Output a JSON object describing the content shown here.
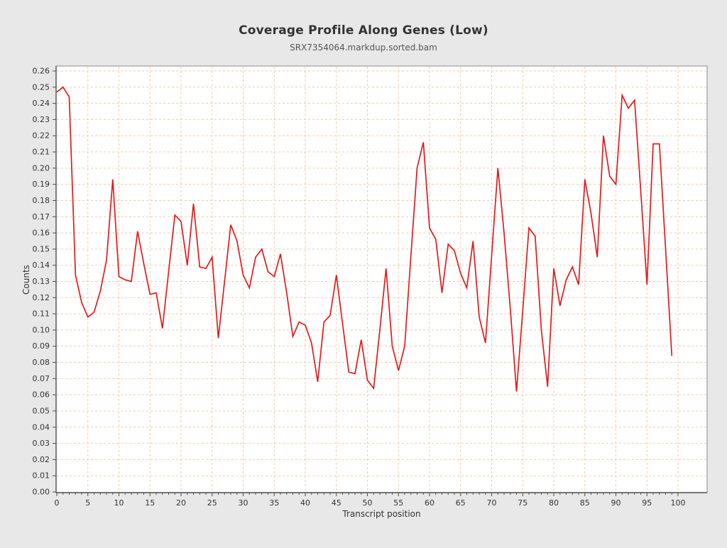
{
  "colors": {
    "background": "#e8e8e8",
    "plot_background": "#ffffff",
    "grid": "#f5c9a2",
    "series": "#e41a1c",
    "frame": "#8c8c8c",
    "axis": "#4d4d4d",
    "tick_label": "#333333",
    "title": "#333333",
    "subtitle": "#555555"
  },
  "chart_data": {
    "type": "line",
    "title": "Coverage Profile Along Genes (Low)",
    "subtitle": "SRX7354064.markdup.sorted.bam",
    "xlabel": "Transcript position",
    "ylabel": "Counts",
    "xlim": [
      0,
      100
    ],
    "ylim": [
      0,
      0.26
    ],
    "x_tick_major": 5,
    "x_tick_minor": 1,
    "y_tick_step": 0.01,
    "grid": true,
    "legend_position": "none",
    "series": [
      {
        "name": "SRX7354064.markdup.sorted.bam",
        "color": "#e41a1c",
        "x": [
          0,
          1,
          2,
          3,
          4,
          5,
          6,
          7,
          8,
          9,
          10,
          11,
          12,
          13,
          14,
          15,
          16,
          17,
          18,
          19,
          20,
          21,
          22,
          23,
          24,
          25,
          26,
          27,
          28,
          29,
          30,
          31,
          32,
          33,
          34,
          35,
          36,
          37,
          38,
          39,
          40,
          41,
          42,
          43,
          44,
          45,
          46,
          47,
          48,
          49,
          50,
          51,
          52,
          53,
          54,
          55,
          56,
          57,
          58,
          59,
          60,
          61,
          62,
          63,
          64,
          65,
          66,
          67,
          68,
          69,
          70,
          71,
          72,
          73,
          74,
          75,
          76,
          77,
          78,
          79,
          80,
          81,
          82,
          83,
          84,
          85,
          86,
          87,
          88,
          89,
          90,
          91,
          92,
          93,
          94,
          95,
          96,
          97,
          98,
          99
        ],
        "y": [
          0.247,
          0.25,
          0.244,
          0.134,
          0.117,
          0.108,
          0.111,
          0.124,
          0.143,
          0.193,
          0.133,
          0.131,
          0.13,
          0.161,
          0.141,
          0.122,
          0.123,
          0.101,
          0.136,
          0.171,
          0.167,
          0.14,
          0.178,
          0.139,
          0.138,
          0.145,
          0.095,
          0.13,
          0.165,
          0.155,
          0.134,
          0.126,
          0.145,
          0.15,
          0.136,
          0.133,
          0.147,
          0.123,
          0.096,
          0.105,
          0.103,
          0.092,
          0.068,
          0.105,
          0.109,
          0.134,
          0.104,
          0.074,
          0.073,
          0.094,
          0.069,
          0.064,
          0.1,
          0.138,
          0.09,
          0.075,
          0.09,
          0.146,
          0.2,
          0.216,
          0.163,
          0.156,
          0.123,
          0.153,
          0.149,
          0.135,
          0.126,
          0.155,
          0.108,
          0.092,
          0.146,
          0.2,
          0.16,
          0.113,
          0.062,
          0.112,
          0.163,
          0.158,
          0.1,
          0.065,
          0.138,
          0.115,
          0.131,
          0.139,
          0.128,
          0.193,
          0.172,
          0.145,
          0.22,
          0.195,
          0.19,
          0.245,
          0.237,
          0.242,
          0.186,
          0.128,
          0.215,
          0.215,
          0.15,
          0.084
        ]
      }
    ]
  }
}
